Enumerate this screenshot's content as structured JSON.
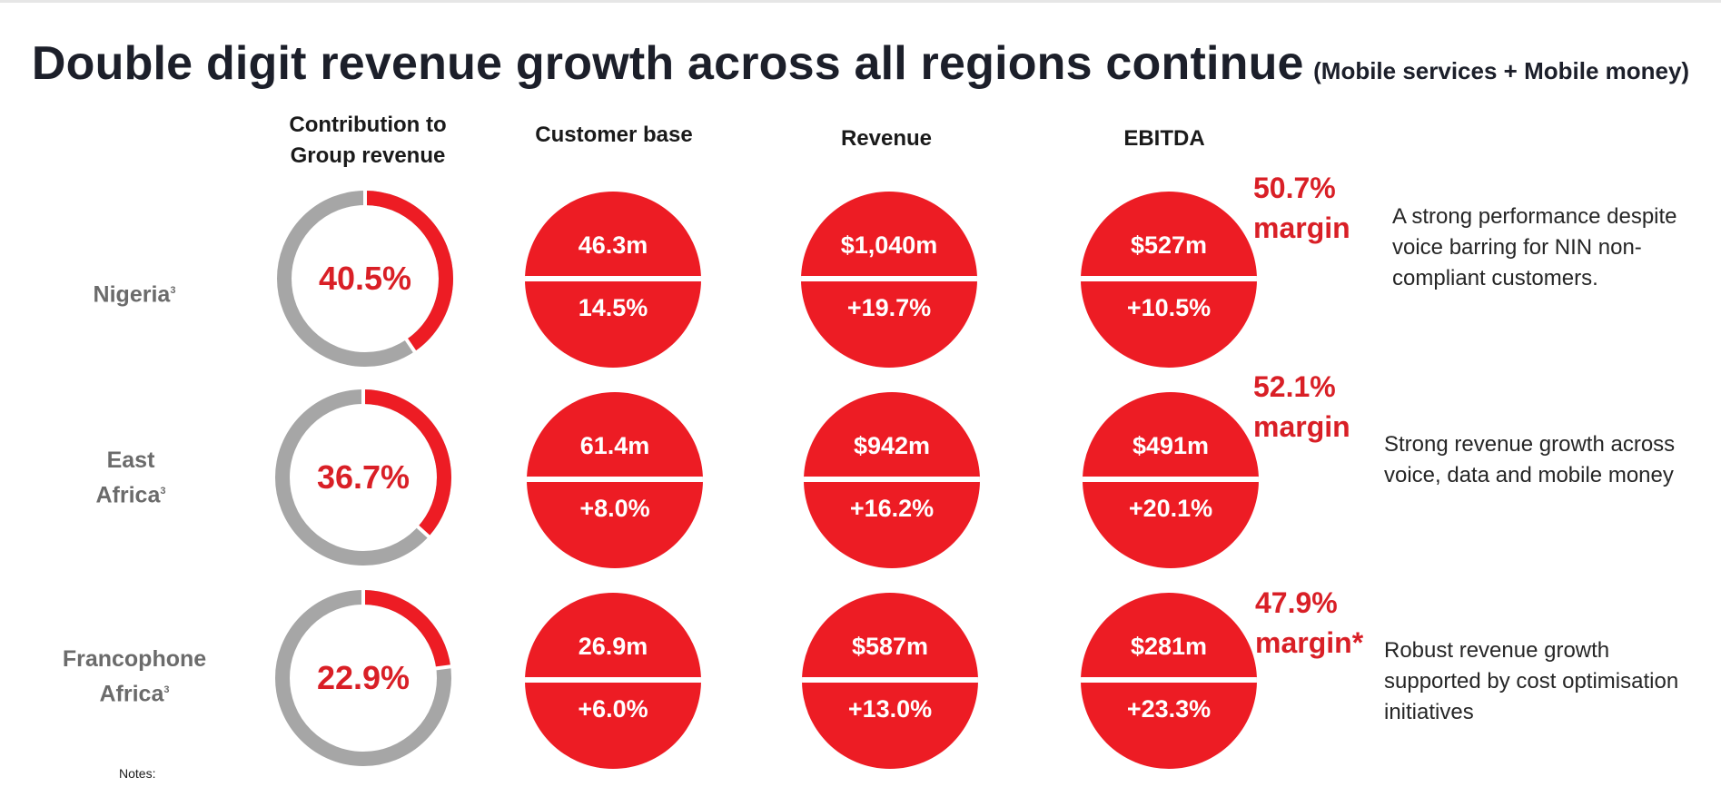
{
  "title": {
    "main": "Double digit revenue growth across all regions continue",
    "sub": "(Mobile services + Mobile money)"
  },
  "headers": {
    "contribution_line1": "Contribution to",
    "contribution_line2": "Group revenue",
    "customer_base": "Customer base",
    "revenue": "Revenue",
    "ebitda": "EBITDA"
  },
  "colors": {
    "accent": "#ED1C24",
    "donut_track": "#A6A6A6",
    "region_label": "#6B6B6B",
    "margin_text": "#D91F26"
  },
  "rows": [
    {
      "region_line1": "Nigeria",
      "region_line2": "",
      "footnote": "3",
      "contribution": "40.5%",
      "contribution_value": 40.5,
      "customer_base": "46.3m",
      "customer_growth": "14.5%",
      "revenue": "$1,040m",
      "revenue_growth": "+19.7%",
      "ebitda": "$527m",
      "ebitda_growth": "+10.5%",
      "margin_pct": "50.7%",
      "margin_word": "margin",
      "comment": "A strong performance despite voice barring for NIN non-compliant customers."
    },
    {
      "region_line1": "East",
      "region_line2": "Africa",
      "footnote": "3",
      "contribution": "36.7%",
      "contribution_value": 36.7,
      "customer_base": "61.4m",
      "customer_growth": "+8.0%",
      "revenue": "$942m",
      "revenue_growth": "+16.2%",
      "ebitda": "$491m",
      "ebitda_growth": "+20.1%",
      "margin_pct": "52.1%",
      "margin_word": "margin",
      "comment": "Strong revenue growth across voice, data and mobile money"
    },
    {
      "region_line1": "Francophone",
      "region_line2": "Africa",
      "footnote": "3",
      "contribution": "22.9%",
      "contribution_value": 22.9,
      "customer_base": "26.9m",
      "customer_growth": "+6.0%",
      "revenue": "$587m",
      "revenue_growth": "+13.0%",
      "ebitda": "$281m",
      "ebitda_growth": "+23.3%",
      "margin_pct": "47.9%",
      "margin_word": "margin*",
      "comment": "Robust revenue growth supported by cost optimisation initiatives"
    }
  ],
  "notes": "Notes:"
}
